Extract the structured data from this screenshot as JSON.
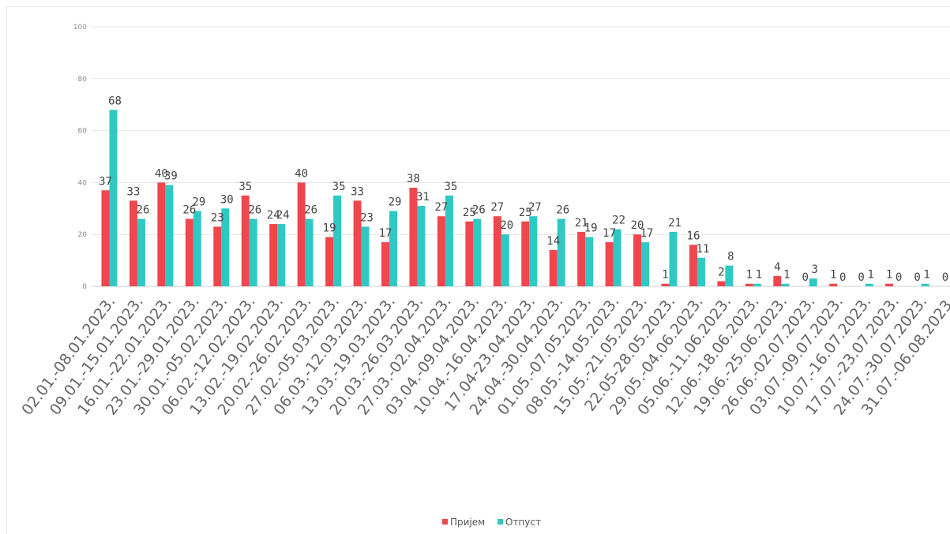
{
  "chart_data": {
    "type": "bar",
    "categories": [
      "02.01.-08.01.2023.",
      "09.01.-15.01.2023.",
      "16.01.-22.01.2023.",
      "23.01.-29.01.2023.",
      "30.01.-05.02.2023.",
      "06.02.-12.02.2023.",
      "13.02.-19.02.2023.",
      "20.02.-26.02.2023.",
      "27.02.-05.03.2023.",
      "06.03.-12.03.2023.",
      "13.03.-19.03.2023.",
      "20.03.-26.03.2023.",
      "27.03.-02.04.2023.",
      "03.04.-09.04.2023.",
      "10.04.-16.04.2023.",
      "17.04-23.04.2023.",
      "24.04.-30.04.2023.",
      "01.05.-07.05.2023.",
      "08.05.-14.05.2023.",
      "15.05.-21.05.2023.",
      "22.05-28.05.2023.",
      "29.05.-04.06.2023.",
      "05.06.-11.06.2023.",
      "12.06.-18.06.2023.",
      "19.06.-25.06.2023.",
      "26.06.-02.07.2023.",
      "03.07.-09.07.2023.",
      "10.07.-16.07.2023.",
      "17.07.-23.07.2023.",
      "24.07.-30.07.2023.",
      "31.07.-06.08.2023."
    ],
    "series": [
      {
        "name": "Пријем",
        "color": "#f0474e",
        "values": [
          37,
          33,
          40,
          26,
          23,
          35,
          24,
          40,
          19,
          33,
          17,
          38,
          27,
          25,
          27,
          25,
          14,
          21,
          17,
          20,
          1,
          16,
          2,
          1,
          4,
          0,
          1,
          0,
          1,
          0,
          0
        ]
      },
      {
        "name": "Отпуст",
        "color": "#2ec9c3",
        "values": [
          68,
          26,
          39,
          29,
          30,
          26,
          24,
          26,
          35,
          23,
          29,
          31,
          35,
          26,
          20,
          27,
          26,
          19,
          22,
          17,
          21,
          11,
          8,
          1,
          1,
          3,
          0,
          1,
          0,
          1,
          0
        ]
      }
    ],
    "ylim": [
      0,
      100
    ],
    "yticks": [
      0,
      20,
      40,
      60,
      80,
      100
    ],
    "grid": true,
    "legend_position": "bottom"
  }
}
